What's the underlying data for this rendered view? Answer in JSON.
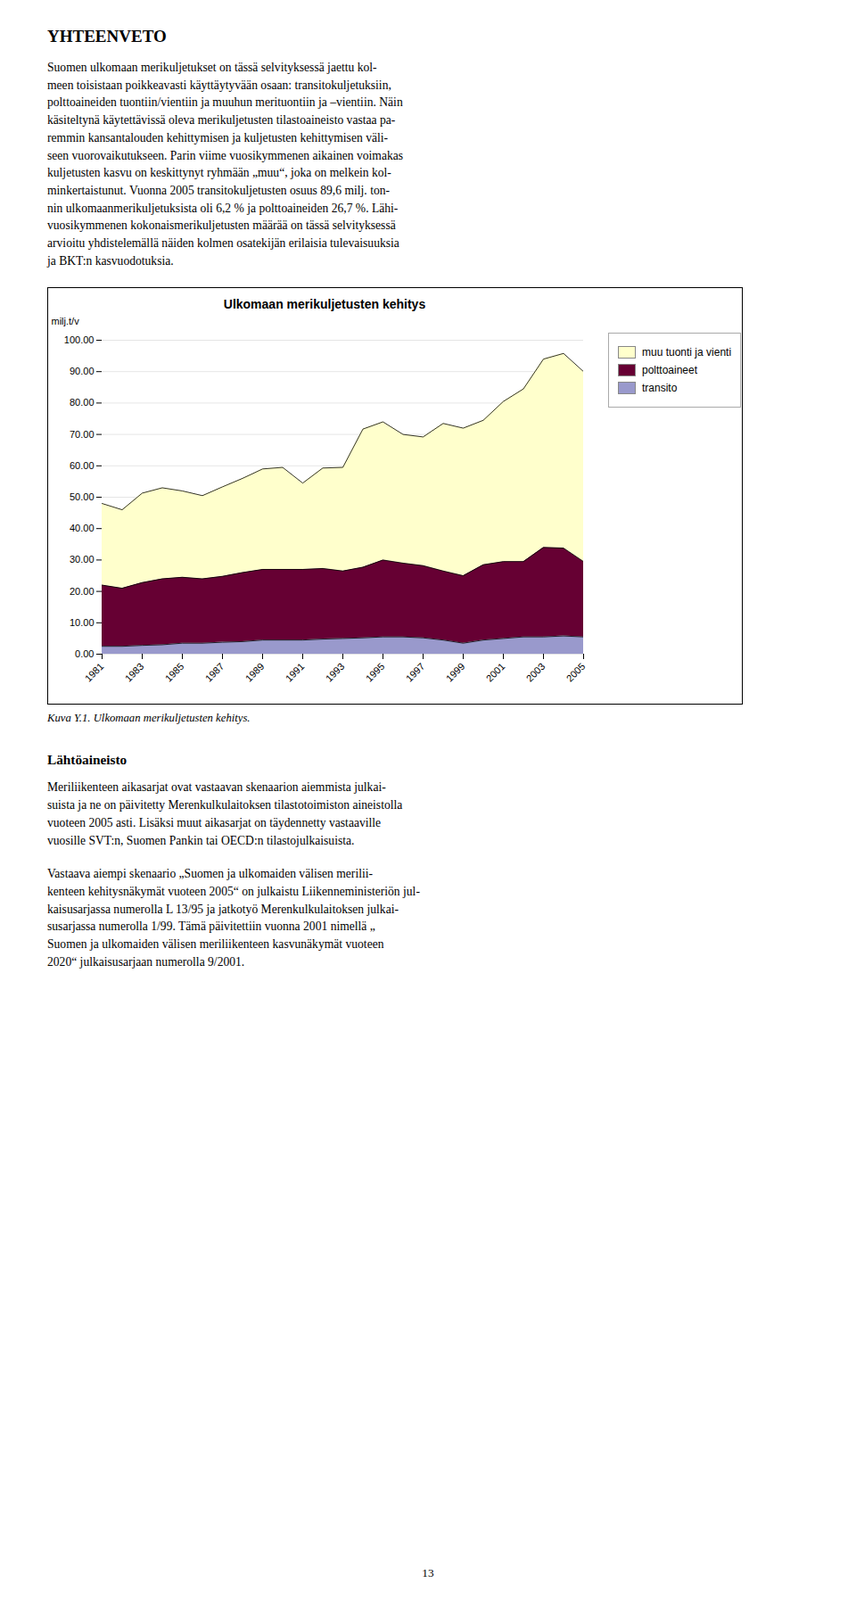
{
  "page": {
    "heading": "YHTEENVETO",
    "intro": "Suomen ulkomaan merikuljetukset on tässä selvityksessä jaettu kol-\nmeen toisistaan poikkeavasti käyttäytyvään osaan: transitokuljetuksiin,\npolttoaineiden tuontiin/vientiin ja muuhun merituontiin ja –vientiin. Näin\nkäsiteltynä käytettävissä oleva merikuljetusten tilastoaineisto vastaa pa-\nremmin kansantalouden kehittymisen ja kuljetusten kehittymisen väli-\nseen vuorovaikutukseen. Parin viime vuosikymmenen aikainen voimakas\nkuljetusten kasvu on keskittynyt ryhmään „muu“, joka on melkein kol-\nminkertaistunut. Vuonna 2005 transitokuljetusten osuus 89,6 milj. ton-\nnin ulkomaanmerikuljetuksista oli 6,2 % ja polttoaineiden 26,7 %. Lähi-\nvuosikymmenen kokonaismerikuljetusten määrää on tässä selvityksessä\narvioitu yhdistelemällä näiden kolmen osatekijän erilaisia tulevaisuuksia\nja BKT:n kasvuodotuksia.",
    "caption": "Kuva Y.1. Ulkomaan merikuljetusten kehitys.",
    "sections": [
      {
        "heading": "Lähtöaineisto",
        "paragraphs": [
          "Meriliikenteen aikasarjat ovat vastaavan skenaarion aiemmista julkai-\nsuista ja ne on päivitetty Merenkulkulaitoksen tilastotoimiston aineistolla\nvuoteen 2005 asti. Lisäksi muut aikasarjat on täydennetty vastaaville\nvuosille SVT:n, Suomen Pankin tai OECD:n tilastojulkaisuista.",
          "Vastaava aiempi skenaario „Suomen ja ulkomaiden välisen merilii-\nkenteen kehitysnäkymät vuoteen 2005“ on julkaistu Liikenneministeriön jul-\nkaisusarjassa numerolla L 13/95 ja jatkotyö Merenkulkulaitoksen julkai-\nsusarjassa numerolla 1/99. Tämä päivitettiin vuonna 2001 nimellä „\nSuomen ja ulkomaiden välisen meriliikenteen kasvunäkymät vuoteen\n2020“ julkaisusarjaan numerolla 9/2001."
        ]
      }
    ],
    "page_number": "13"
  },
  "chart_data": {
    "type": "area",
    "stacked": true,
    "title": "Ulkomaan merikuljetusten kehitys",
    "ylabel": "milj.t/v",
    "x": [
      1981,
      1982,
      1983,
      1984,
      1985,
      1986,
      1987,
      1988,
      1989,
      1990,
      1991,
      1992,
      1993,
      1994,
      1995,
      1996,
      1997,
      1998,
      1999,
      2000,
      2001,
      2002,
      2003,
      2004,
      2005
    ],
    "series": [
      {
        "name": "transito",
        "color": "#9999CC",
        "values": [
          2.5,
          2.5,
          2.8,
          3.0,
          3.5,
          3.5,
          3.8,
          4.0,
          4.5,
          4.5,
          4.5,
          4.8,
          5.0,
          5.2,
          5.5,
          5.5,
          5.2,
          4.5,
          3.5,
          4.5,
          5.0,
          5.5,
          5.5,
          5.8,
          5.5
        ]
      },
      {
        "name": "polttoaineet",
        "color": "#660033",
        "values": [
          19.5,
          18.5,
          20.0,
          21.0,
          21.0,
          20.5,
          21.0,
          22.0,
          22.5,
          22.5,
          22.5,
          22.5,
          21.5,
          22.5,
          24.5,
          23.5,
          23.0,
          22.0,
          21.5,
          24.0,
          24.5,
          24.0,
          28.5,
          28.0,
          24.0
        ]
      },
      {
        "name": "muu tuonti ja vienti",
        "color": "#FFFFCC",
        "values": [
          26.0,
          25.0,
          28.5,
          29.0,
          27.5,
          26.5,
          28.5,
          30.0,
          32.0,
          32.5,
          27.5,
          32.0,
          33.0,
          44.0,
          44.0,
          41.0,
          41.0,
          47.0,
          47.0,
          46.0,
          51.0,
          55.0,
          60.0,
          62.0,
          60.5
        ]
      }
    ],
    "xlim": [
      1981,
      2005
    ],
    "xticks": [
      1981,
      1983,
      1985,
      1987,
      1989,
      1991,
      1993,
      1995,
      1997,
      1999,
      2001,
      2003,
      2005
    ],
    "ylim": [
      0,
      100
    ],
    "yticks": [
      {
        "value": 0,
        "label": "0.00"
      },
      {
        "value": 10,
        "label": "10.00"
      },
      {
        "value": 20,
        "label": "20.00"
      },
      {
        "value": 30,
        "label": "30.00"
      },
      {
        "value": 40,
        "label": "40.00"
      },
      {
        "value": 50,
        "label": "50.00"
      },
      {
        "value": 60,
        "label": "60.00"
      },
      {
        "value": 70,
        "label": "70.00"
      },
      {
        "value": 80,
        "label": "80.00"
      },
      {
        "value": 90,
        "label": "90.00"
      },
      {
        "value": 100,
        "label": "100.00"
      }
    ],
    "grid": true,
    "legend": "right"
  }
}
